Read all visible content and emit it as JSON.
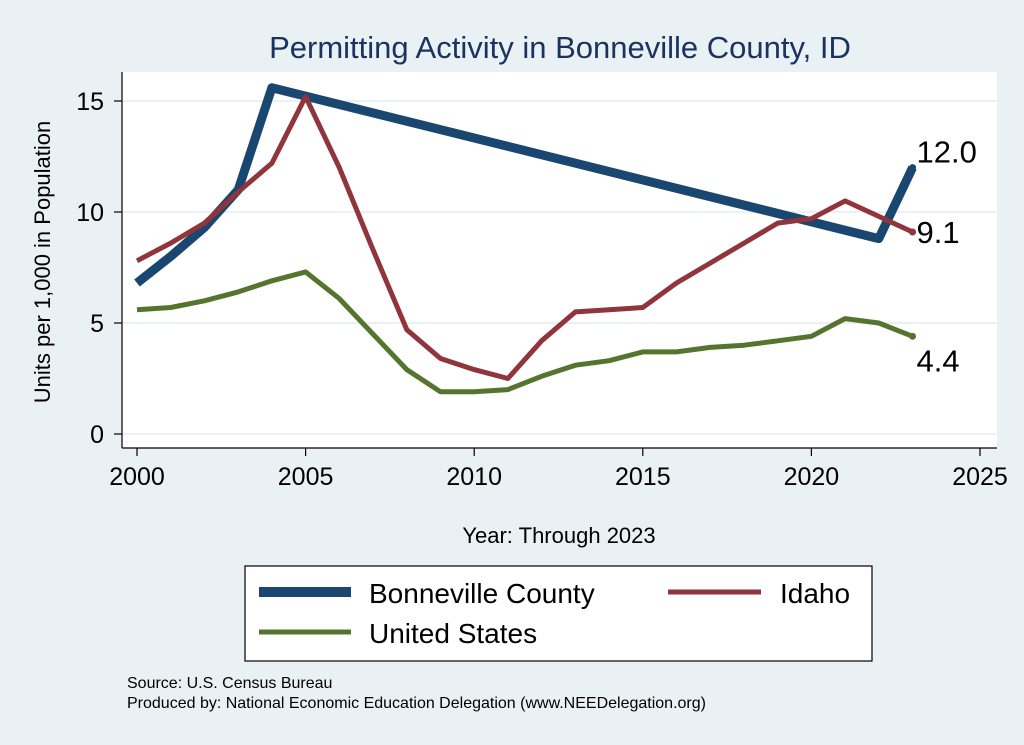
{
  "chart_data": {
    "type": "line",
    "title": "Permitting Activity in Bonneville County, ID",
    "xlabel": "Year: Through 2023",
    "ylabel": "Units per 1,000 in Population",
    "xlim": [
      2000,
      2025
    ],
    "ylim": [
      0,
      16
    ],
    "xticks": [
      2000,
      2005,
      2010,
      2015,
      2020,
      2025
    ],
    "yticks": [
      0,
      5,
      10,
      15
    ],
    "xtick_labels": [
      "2000",
      "2005",
      "2010",
      "2015",
      "2020",
      "2025"
    ],
    "ytick_labels": [
      "0",
      "5",
      "10",
      "15"
    ],
    "grid": true,
    "legend_position": "bottom",
    "series": [
      {
        "name": "Bonneville County",
        "color": "#1a476f",
        "x": [
          2000,
          2001,
          2002,
          2003,
          2004,
          2022,
          2023
        ],
        "values": [
          6.8,
          8.0,
          9.3,
          11.0,
          15.6,
          8.8,
          12.0
        ],
        "end_label": "12.0"
      },
      {
        "name": "Idaho",
        "color": "#90353b",
        "x": [
          2000,
          2001,
          2002,
          2003,
          2004,
          2005,
          2006,
          2007,
          2008,
          2009,
          2010,
          2011,
          2012,
          2013,
          2014,
          2015,
          2016,
          2017,
          2018,
          2019,
          2020,
          2021,
          2022,
          2023
        ],
        "values": [
          7.8,
          8.6,
          9.5,
          10.9,
          12.2,
          15.2,
          12.0,
          8.3,
          4.7,
          3.4,
          2.9,
          2.5,
          4.2,
          5.5,
          5.6,
          5.7,
          6.8,
          7.7,
          8.6,
          9.5,
          9.7,
          10.5,
          9.8,
          9.1
        ],
        "end_label": "9.1"
      },
      {
        "name": "United States",
        "color": "#55752f",
        "x": [
          2000,
          2001,
          2002,
          2003,
          2004,
          2005,
          2006,
          2007,
          2008,
          2009,
          2010,
          2011,
          2012,
          2013,
          2014,
          2015,
          2016,
          2017,
          2018,
          2019,
          2020,
          2021,
          2022,
          2023
        ],
        "values": [
          5.6,
          5.7,
          6.0,
          6.4,
          6.9,
          7.3,
          6.1,
          4.5,
          2.9,
          1.9,
          1.9,
          2.0,
          2.6,
          3.1,
          3.3,
          3.7,
          3.7,
          3.9,
          4.0,
          4.2,
          4.4,
          5.2,
          5.0,
          4.4
        ],
        "end_label": "4.4"
      }
    ]
  },
  "legend": {
    "items": [
      {
        "label": "Bonneville County"
      },
      {
        "label": "Idaho"
      },
      {
        "label": "United States"
      }
    ]
  },
  "footer": {
    "source": "Source: U.S. Census Bureau",
    "produced_by": "Produced by: National Economic Education Delegation (www.NEEDelegation.org)"
  }
}
